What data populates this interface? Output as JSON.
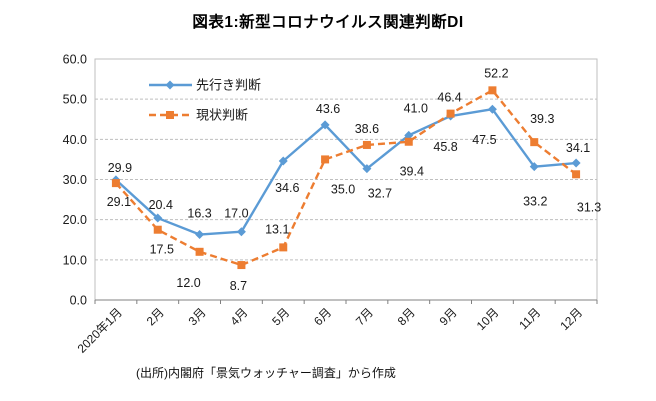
{
  "chart_data": {
    "type": "line",
    "title": "図表1:新型コロナウイルス関連判断DI",
    "source_note": "(出所)内閣府「景気ウォッチャー調査」から作成",
    "categories": [
      "2020年1月",
      "2月",
      "3月",
      "4月",
      "5月",
      "6月",
      "7月",
      "8月",
      "9月",
      "10月",
      "11月",
      "12月"
    ],
    "xlabel": "",
    "ylabel": "",
    "ylim": [
      0,
      60
    ],
    "ytick_step": 10,
    "ytick_labels": [
      "0.0",
      "10.0",
      "20.0",
      "30.0",
      "40.0",
      "50.0",
      "60.0"
    ],
    "grid": true,
    "legend_position": "top-left-inside",
    "colors": {
      "grid": "#BFBFBF",
      "axis": "#808080",
      "text": "#1a1a1a"
    },
    "series": [
      {
        "name": "先行き判断",
        "color": "#5B9BD5",
        "marker": "diamond",
        "dash": "solid",
        "values": [
          29.9,
          20.4,
          16.3,
          17.0,
          34.6,
          43.6,
          32.7,
          41.0,
          45.8,
          47.5,
          33.2,
          34.1
        ],
        "label_offsets": [
          [
            4,
            -8
          ],
          [
            3,
            -9
          ],
          [
            0,
            -17
          ],
          [
            -5,
            -14
          ],
          [
            4,
            31
          ],
          [
            3,
            -12
          ],
          [
            13,
            29
          ],
          [
            7,
            -23
          ],
          [
            -5,
            35
          ],
          [
            -8,
            35
          ],
          [
            1,
            39
          ],
          [
            2,
            -11
          ]
        ]
      },
      {
        "name": "現状判断",
        "color": "#ED7D31",
        "marker": "square",
        "dash": "dashed",
        "values": [
          29.1,
          17.5,
          12.0,
          8.7,
          13.1,
          35.0,
          38.6,
          39.4,
          46.4,
          52.2,
          39.3,
          31.3
        ],
        "label_offsets": [
          [
            3,
            23
          ],
          [
            4,
            24
          ],
          [
            -11,
            35
          ],
          [
            -3,
            25
          ],
          [
            -6,
            -14
          ],
          [
            18,
            34
          ],
          [
            0,
            -12
          ],
          [
            3,
            34
          ],
          [
            -1,
            -12
          ],
          [
            4,
            -13
          ],
          [
            8,
            -19
          ],
          [
            13,
            37
          ]
        ]
      }
    ]
  }
}
